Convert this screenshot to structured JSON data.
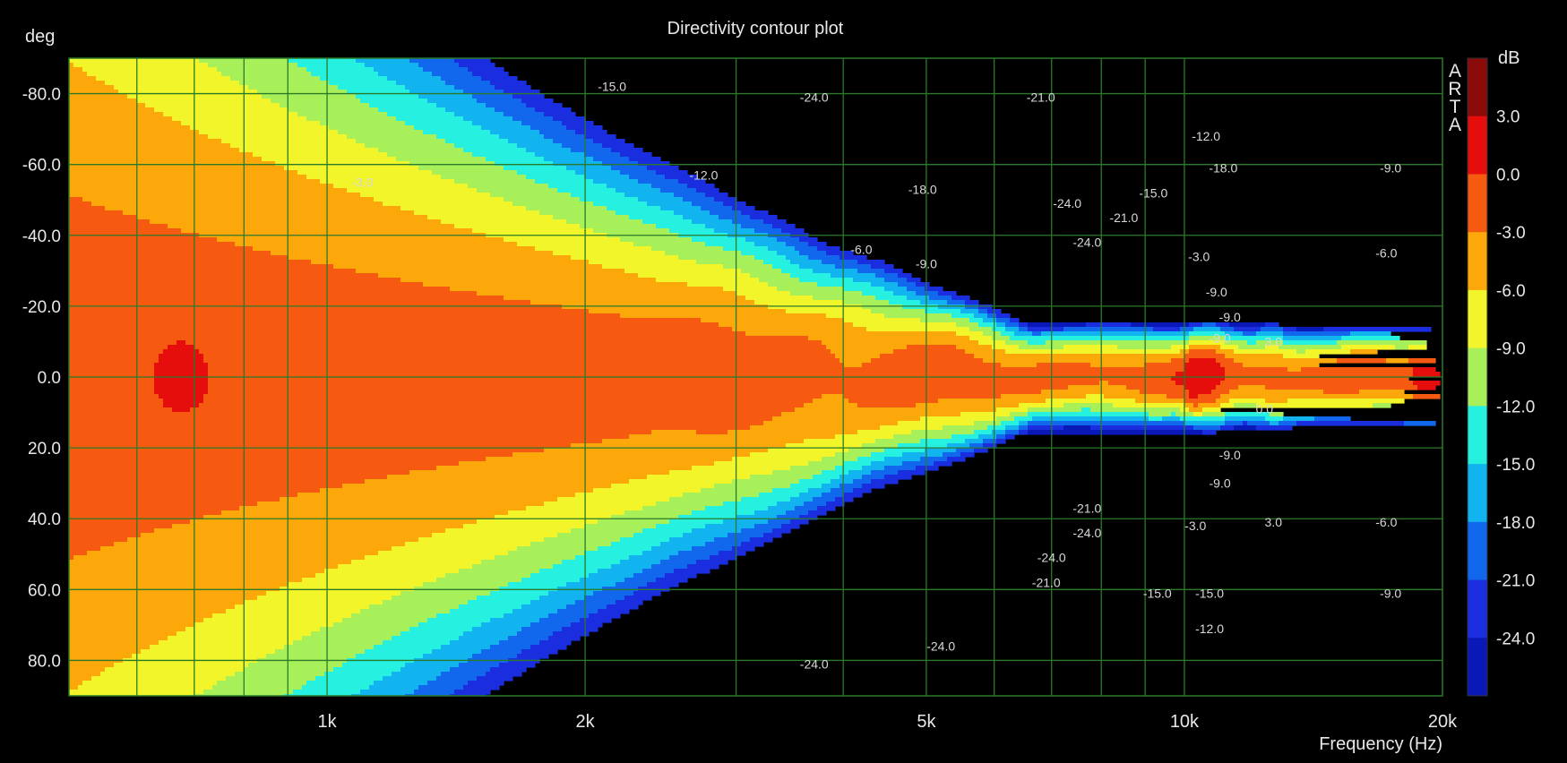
{
  "chart_data": {
    "type": "heatmap",
    "title": "Directivity contour plot",
    "xlabel": "Frequency (Hz)",
    "ylabel": "deg",
    "colorbar_label": "dB",
    "watermark": "ARTA",
    "x_scale": "log",
    "xlim": [
      500,
      20000
    ],
    "ylim": [
      -90,
      90
    ],
    "y_ticks": [
      "-80.0",
      "-60.0",
      "-40.0",
      "-20.0",
      "0.0",
      "20.0",
      "40.0",
      "60.0",
      "80.0"
    ],
    "x_ticks": [
      {
        "value": 1000,
        "label": "1k"
      },
      {
        "value": 2000,
        "label": "2k"
      },
      {
        "value": 5000,
        "label": "5k"
      },
      {
        "value": 10000,
        "label": "10k"
      },
      {
        "value": 20000,
        "label": "20k"
      }
    ],
    "colorbar": {
      "levels": [
        6,
        3,
        0,
        -3,
        -6,
        -9,
        -12,
        -15,
        -18,
        -21,
        -24
      ],
      "tick_labels": [
        "3.0",
        "0.0",
        "-3.0",
        "-6.0",
        "-9.0",
        "-12.0",
        "-15.0",
        "-18.0",
        "-21.0",
        "-24.0"
      ],
      "colors": [
        "#8b0a0a",
        "#e60d0d",
        "#f55a10",
        "#fca80a",
        "#f2f52a",
        "#a8f05a",
        "#26f0e0",
        "#12b4f0",
        "#1168ec",
        "#1a2ee0",
        "#0b18b8"
      ]
    },
    "contour_labels": [
      {
        "text": "-15.0",
        "freq": 2150,
        "deg": -82
      },
      {
        "text": "-24.0",
        "freq": 3700,
        "deg": -79
      },
      {
        "text": "-21.0",
        "freq": 6800,
        "deg": -79
      },
      {
        "text": "-3.0",
        "freq": 1100,
        "deg": -55
      },
      {
        "text": "-12.0",
        "freq": 2750,
        "deg": -57
      },
      {
        "text": "-18.0",
        "freq": 4950,
        "deg": -53
      },
      {
        "text": "-24.0",
        "freq": 7300,
        "deg": -49
      },
      {
        "text": "-21.0",
        "freq": 8500,
        "deg": -45
      },
      {
        "text": "-15.0",
        "freq": 9200,
        "deg": -52
      },
      {
        "text": "-12.0",
        "freq": 10600,
        "deg": -68
      },
      {
        "text": "-18.0",
        "freq": 11100,
        "deg": -59
      },
      {
        "text": "-9.0",
        "freq": 17400,
        "deg": -59
      },
      {
        "text": "-24.0",
        "freq": 7700,
        "deg": -38
      },
      {
        "text": "-6.0",
        "freq": 4200,
        "deg": -36
      },
      {
        "text": "-9.0",
        "freq": 5000,
        "deg": -32
      },
      {
        "text": "-3.0",
        "freq": 10400,
        "deg": -34
      },
      {
        "text": "-6.0",
        "freq": 17200,
        "deg": -35
      },
      {
        "text": "-9.0",
        "freq": 10900,
        "deg": -24
      },
      {
        "text": "-9.0",
        "freq": 11300,
        "deg": -17
      },
      {
        "text": "-9.0",
        "freq": 11000,
        "deg": -11
      },
      {
        "text": "3.0",
        "freq": 12700,
        "deg": -10
      },
      {
        "text": "0.0",
        "freq": 12400,
        "deg": 9
      },
      {
        "text": "-9.0",
        "freq": 11300,
        "deg": 22
      },
      {
        "text": "-9.0",
        "freq": 11000,
        "deg": 30
      },
      {
        "text": "-21.0",
        "freq": 7700,
        "deg": 37
      },
      {
        "text": "-24.0",
        "freq": 7700,
        "deg": 44
      },
      {
        "text": "-3.0",
        "freq": 10300,
        "deg": 42
      },
      {
        "text": "3.0",
        "freq": 12700,
        "deg": 41
      },
      {
        "text": "-6.0",
        "freq": 17200,
        "deg": 41
      },
      {
        "text": "-24.0",
        "freq": 7000,
        "deg": 51
      },
      {
        "text": "-21.0",
        "freq": 6900,
        "deg": 58
      },
      {
        "text": "-15.0",
        "freq": 9300,
        "deg": 61
      },
      {
        "text": "-15.0",
        "freq": 10700,
        "deg": 61
      },
      {
        "text": "-9.0",
        "freq": 17400,
        "deg": 61
      },
      {
        "text": "-12.0",
        "freq": 10700,
        "deg": 71
      },
      {
        "text": "-24.0",
        "freq": 5200,
        "deg": 76
      },
      {
        "text": "-24.0",
        "freq": 3700,
        "deg": 81
      }
    ]
  }
}
